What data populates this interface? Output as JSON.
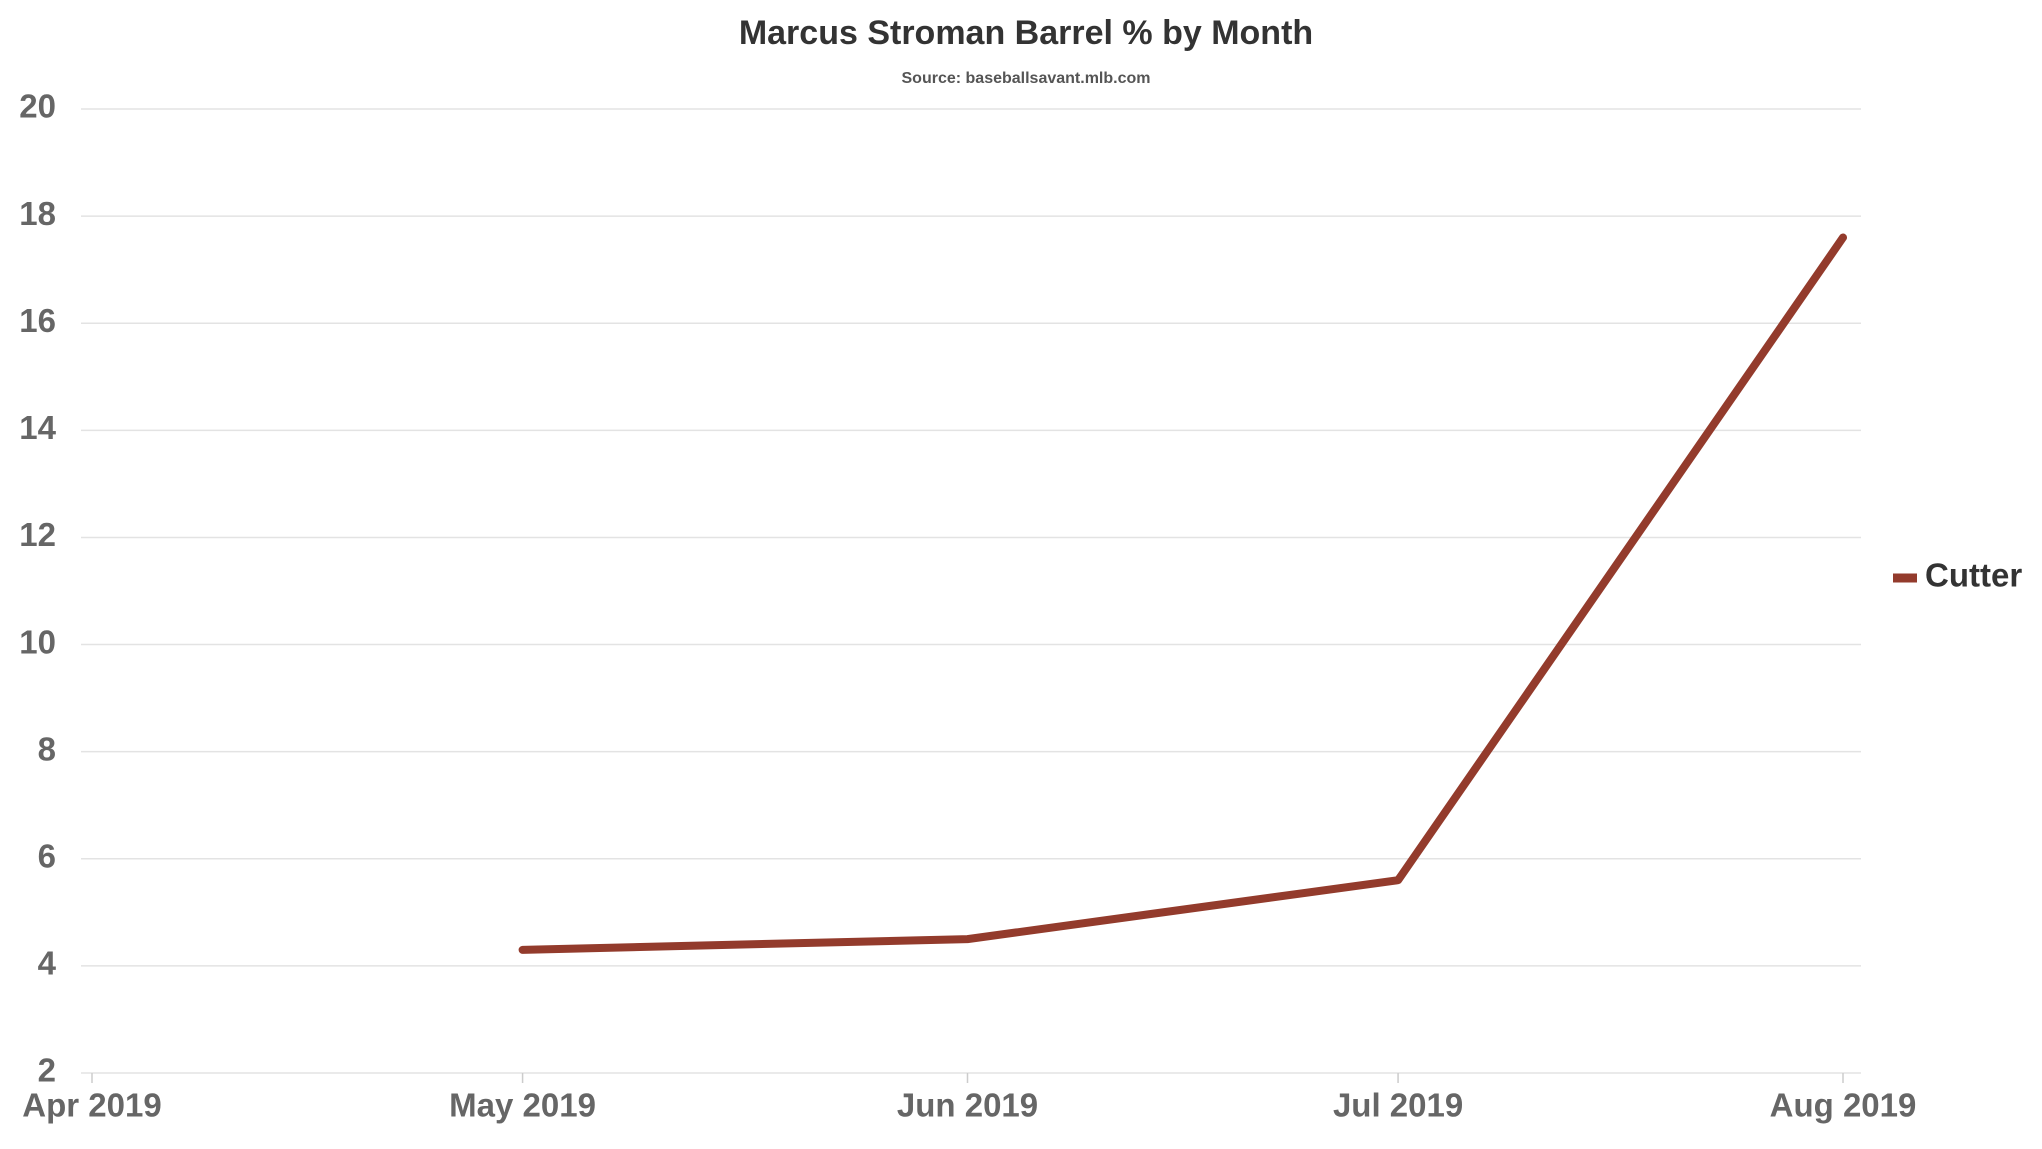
{
  "chart_data": {
    "type": "line",
    "title": "Marcus Stroman Barrel % by Month",
    "subtitle": "Source: baseballsavant.mlb.com",
    "x": [
      "Apr 2019",
      "May 2019",
      "Jun 2019",
      "Jul 2019",
      "Aug 2019"
    ],
    "series": [
      {
        "name": "Cutter",
        "color": "#933b2c",
        "values": [
          null,
          4.3,
          4.5,
          5.6,
          17.6
        ]
      }
    ],
    "ylim": [
      2,
      20
    ],
    "yticks": [
      2,
      4,
      6,
      8,
      10,
      12,
      14,
      16,
      18,
      20
    ],
    "grid": true,
    "legend": "right"
  }
}
